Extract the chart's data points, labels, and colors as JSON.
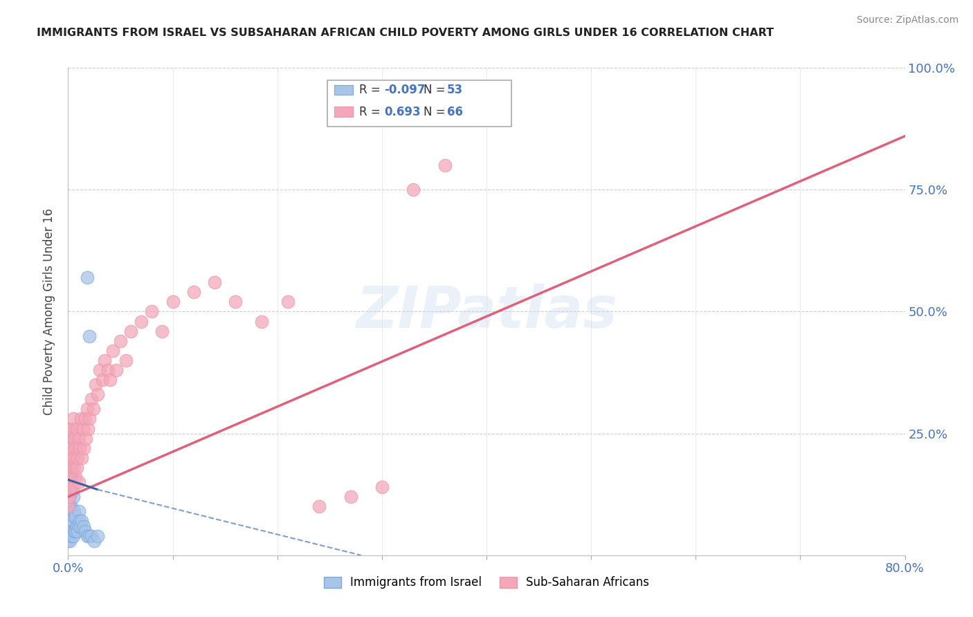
{
  "title": "IMMIGRANTS FROM ISRAEL VS SUBSAHARAN AFRICAN CHILD POVERTY AMONG GIRLS UNDER 16 CORRELATION CHART",
  "source": "Source: ZipAtlas.com",
  "ylabel": "Child Poverty Among Girls Under 16",
  "xlim": [
    0,
    0.8
  ],
  "ylim": [
    0,
    1.0
  ],
  "color_blue": "#a8c4e8",
  "color_pink": "#f4a7b9",
  "trend_blue_solid": "#3a5fa0",
  "trend_blue_dash": "#7a9fd4",
  "trend_pink": "#e0607a",
  "watermark": "ZIPatlas",
  "blue_x": [
    0.0,
    0.0,
    0.001,
    0.001,
    0.001,
    0.001,
    0.001,
    0.001,
    0.001,
    0.001,
    0.001,
    0.001,
    0.001,
    0.002,
    0.002,
    0.002,
    0.002,
    0.002,
    0.002,
    0.002,
    0.002,
    0.002,
    0.003,
    0.003,
    0.003,
    0.003,
    0.003,
    0.004,
    0.004,
    0.004,
    0.005,
    0.005,
    0.005,
    0.006,
    0.006,
    0.007,
    0.007,
    0.008,
    0.009,
    0.01,
    0.01,
    0.011,
    0.012,
    0.013,
    0.015,
    0.016,
    0.018,
    0.02,
    0.022,
    0.025,
    0.028,
    0.018,
    0.02
  ],
  "blue_y": [
    0.03,
    0.05,
    0.04,
    0.06,
    0.08,
    0.1,
    0.12,
    0.14,
    0.16,
    0.18,
    0.2,
    0.22,
    0.25,
    0.03,
    0.05,
    0.07,
    0.1,
    0.13,
    0.16,
    0.19,
    0.22,
    0.24,
    0.04,
    0.07,
    0.1,
    0.14,
    0.18,
    0.05,
    0.09,
    0.13,
    0.04,
    0.08,
    0.12,
    0.05,
    0.09,
    0.05,
    0.08,
    0.06,
    0.05,
    0.06,
    0.09,
    0.07,
    0.06,
    0.07,
    0.06,
    0.05,
    0.04,
    0.04,
    0.04,
    0.03,
    0.04,
    0.57,
    0.45
  ],
  "pink_x": [
    0.0,
    0.001,
    0.001,
    0.001,
    0.001,
    0.001,
    0.002,
    0.002,
    0.002,
    0.002,
    0.003,
    0.003,
    0.003,
    0.004,
    0.004,
    0.004,
    0.005,
    0.005,
    0.005,
    0.006,
    0.006,
    0.007,
    0.007,
    0.008,
    0.008,
    0.009,
    0.01,
    0.01,
    0.011,
    0.012,
    0.013,
    0.014,
    0.015,
    0.016,
    0.017,
    0.018,
    0.019,
    0.02,
    0.022,
    0.024,
    0.026,
    0.028,
    0.03,
    0.033,
    0.035,
    0.038,
    0.04,
    0.043,
    0.046,
    0.05,
    0.055,
    0.06,
    0.07,
    0.08,
    0.09,
    0.1,
    0.12,
    0.14,
    0.16,
    0.185,
    0.21,
    0.24,
    0.27,
    0.3,
    0.33,
    0.36
  ],
  "pink_y": [
    0.1,
    0.12,
    0.16,
    0.2,
    0.22,
    0.25,
    0.14,
    0.18,
    0.22,
    0.26,
    0.15,
    0.2,
    0.24,
    0.16,
    0.22,
    0.26,
    0.14,
    0.2,
    0.28,
    0.18,
    0.24,
    0.16,
    0.22,
    0.18,
    0.26,
    0.2,
    0.15,
    0.24,
    0.22,
    0.28,
    0.2,
    0.26,
    0.22,
    0.28,
    0.24,
    0.3,
    0.26,
    0.28,
    0.32,
    0.3,
    0.35,
    0.33,
    0.38,
    0.36,
    0.4,
    0.38,
    0.36,
    0.42,
    0.38,
    0.44,
    0.4,
    0.46,
    0.48,
    0.5,
    0.46,
    0.52,
    0.54,
    0.56,
    0.52,
    0.48,
    0.52,
    0.1,
    0.12,
    0.14,
    0.75,
    0.8
  ],
  "pink_trend_x0": 0.0,
  "pink_trend_y0": 0.12,
  "pink_trend_x1": 0.8,
  "pink_trend_y1": 0.86,
  "blue_trend_solid_x0": 0.0,
  "blue_trend_solid_y0": 0.155,
  "blue_trend_solid_x1": 0.028,
  "blue_trend_solid_y1": 0.135,
  "blue_trend_dash_x0": 0.028,
  "blue_trend_dash_y0": 0.135,
  "blue_trend_dash_x1": 0.28,
  "blue_trend_dash_y1": 0.0
}
